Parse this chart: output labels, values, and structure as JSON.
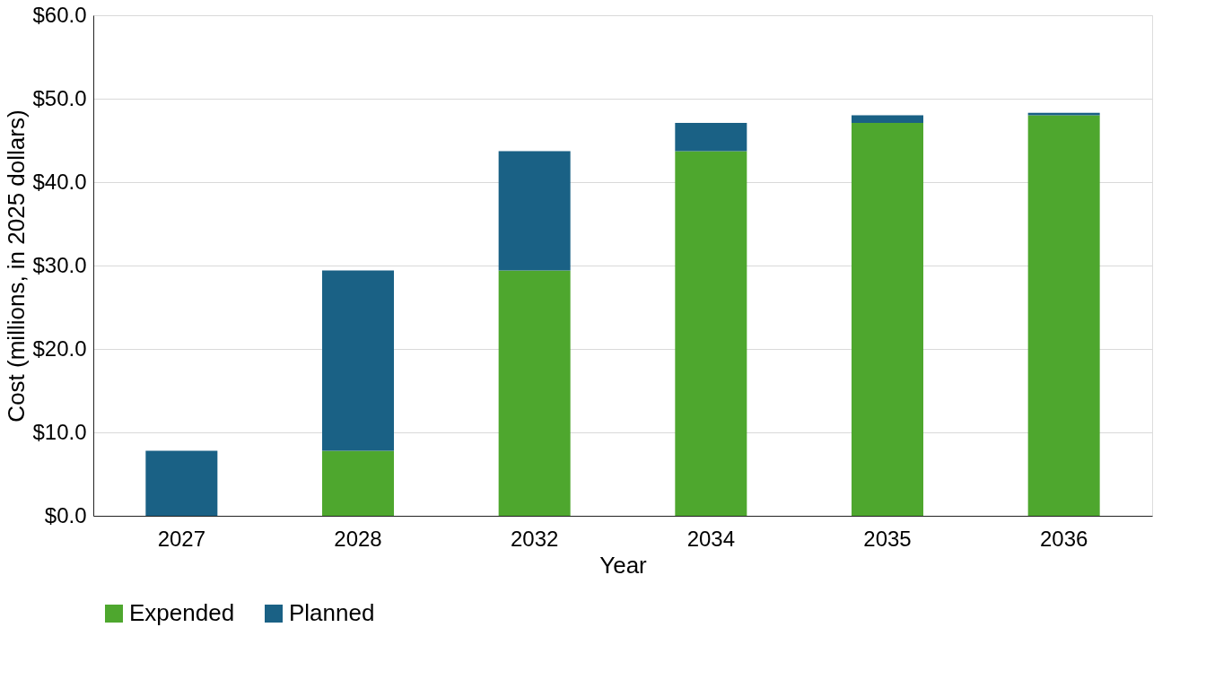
{
  "chart_data": {
    "type": "bar",
    "stacked": true,
    "xlabel": "Year",
    "ylabel": "Cost (millions, in 2025 dollars)",
    "categories": [
      "2027",
      "2028",
      "2032",
      "2034",
      "2035",
      "2036"
    ],
    "series": [
      {
        "name": "Expended",
        "color": "#4ea72e",
        "values": [
          0,
          7.8,
          29.4,
          43.7,
          47.1,
          48.0
        ]
      },
      {
        "name": "Planned",
        "color": "#1a6185",
        "values": [
          7.8,
          21.6,
          14.3,
          3.4,
          0.9,
          0.3
        ]
      }
    ],
    "ylim": [
      0,
      60
    ],
    "yticks": [
      {
        "value": 0,
        "label": "$0.0"
      },
      {
        "value": 10,
        "label": "$10.0"
      },
      {
        "value": 20,
        "label": "$20.0"
      },
      {
        "value": 30,
        "label": "$30.0"
      },
      {
        "value": 40,
        "label": "$40.0"
      },
      {
        "value": 50,
        "label": "$50.0"
      },
      {
        "value": 60,
        "label": "$60.0"
      }
    ],
    "grid": "y",
    "legend": "bottom"
  }
}
